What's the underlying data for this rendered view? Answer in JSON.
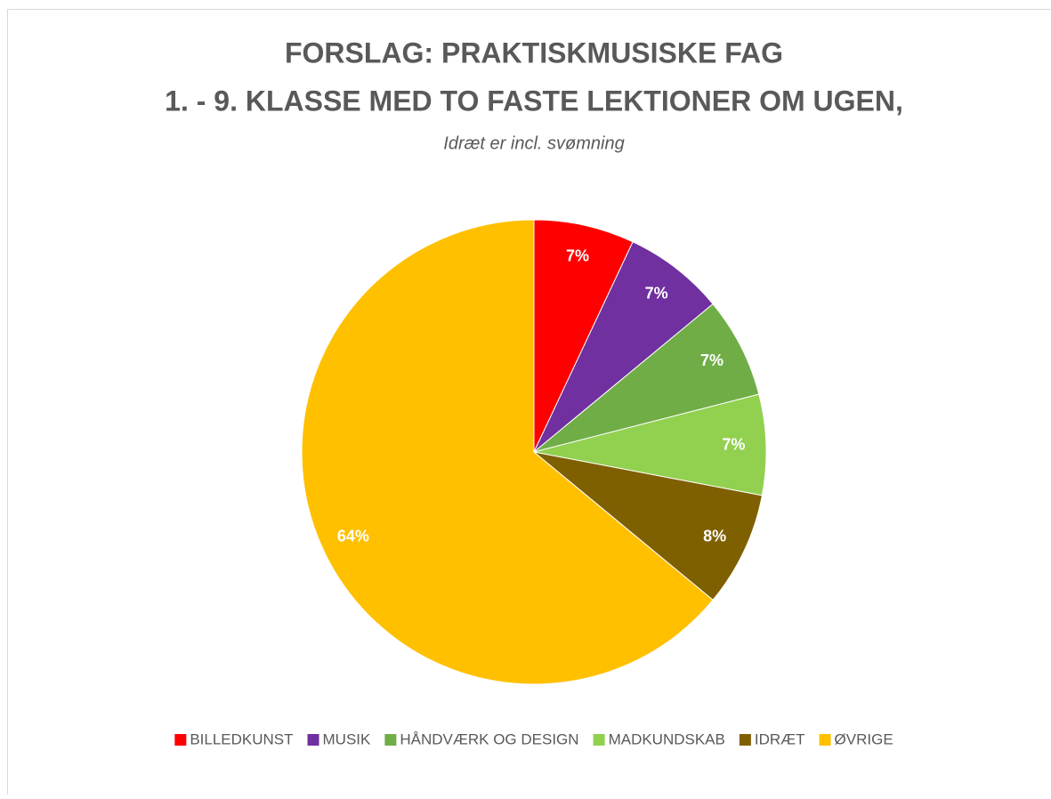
{
  "chart_data": {
    "type": "pie",
    "title": [
      "FORSLAG:  PRAKTISKMUSISKE FAG",
      "1. - 9. KLASSE MED TO FASTE LEKTIONER OM UGEN,"
    ],
    "subtitle": "Idræt er incl. svømning",
    "categories": [
      "BILLEDKUNST",
      "MUSIK",
      "HÅNDVÆRK OG DESIGN",
      "MADKUNDSKAB",
      "IDRÆT",
      "ØVRIGE"
    ],
    "values": [
      7,
      7,
      7,
      7,
      8,
      64
    ],
    "value_labels": [
      "7%",
      "7%",
      "7%",
      "7%",
      "8%",
      "64%"
    ],
    "colors": [
      "#ff0000",
      "#7030a0",
      "#70ad47",
      "#92d050",
      "#7f6000",
      "#ffc000"
    ],
    "legend": "bottom"
  }
}
